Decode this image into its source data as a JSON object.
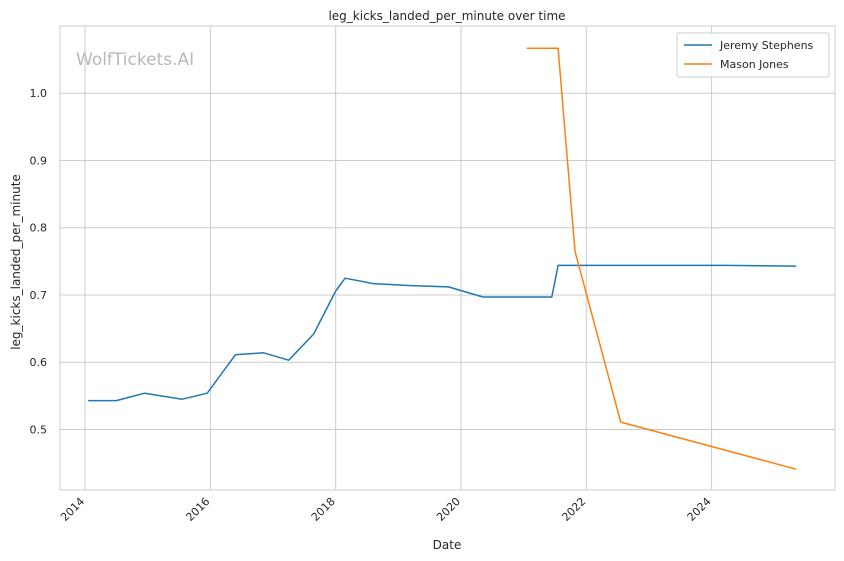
{
  "chart_data": {
    "type": "line",
    "title": "leg_kicks_landed_per_minute over time",
    "xlabel": "Date",
    "ylabel": "leg_kicks_landed_per_minute",
    "watermark": "WolfTickets.AI",
    "xlim": [
      2013.6,
      2025.97
    ],
    "ylim": [
      0.41,
      1.1
    ],
    "x_ticks": [
      2014,
      2016,
      2018,
      2020,
      2022,
      2024
    ],
    "y_ticks": [
      0.5,
      0.6,
      0.7,
      0.8,
      0.9,
      1.0
    ],
    "y_tick_labels": [
      "0.5",
      "0.6",
      "0.7",
      "0.8",
      "0.9",
      "1.0"
    ],
    "grid": true,
    "legend_position": "top-right",
    "series": [
      {
        "name": "Jeremy Stephens",
        "color": "#1f77b4",
        "x": [
          2014.05,
          2014.5,
          2014.95,
          2015.55,
          2015.95,
          2016.4,
          2016.85,
          2017.25,
          2017.65,
          2018.0,
          2018.15,
          2018.6,
          2019.2,
          2019.8,
          2020.35,
          2020.8,
          2021.45,
          2021.55,
          2022.2,
          2023.0,
          2024.2,
          2025.35
        ],
        "y": [
          0.543,
          0.543,
          0.554,
          0.545,
          0.554,
          0.611,
          0.614,
          0.603,
          0.642,
          0.706,
          0.725,
          0.717,
          0.714,
          0.712,
          0.697,
          0.697,
          0.697,
          0.744,
          0.744,
          0.744,
          0.744,
          0.743
        ]
      },
      {
        "name": "Mason Jones",
        "color": "#ff7f0e",
        "x": [
          2021.05,
          2021.55,
          2021.82,
          2022.55,
          2025.35
        ],
        "y": [
          1.067,
          1.067,
          0.765,
          0.511,
          0.441
        ]
      }
    ]
  }
}
